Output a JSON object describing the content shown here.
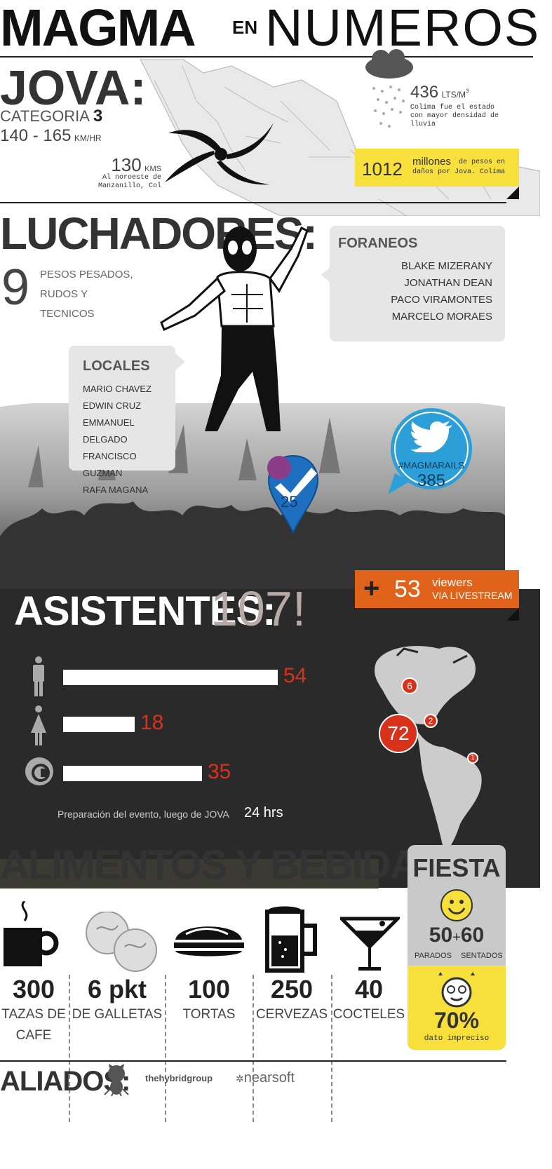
{
  "header": {
    "magma": "MAGMA",
    "en": "EN",
    "numeros": "NUMEROS"
  },
  "jova": {
    "title": "JOVA:",
    "category_label": "CATEGORIA",
    "category_value": "3",
    "speed_range": "140 - 165",
    "speed_unit": "KM/HR",
    "distance_value": "130",
    "distance_unit": "KMS",
    "distance_line1": "Al noroeste de",
    "distance_line2": "Manzanillo, Col",
    "rain_value": "436",
    "rain_unit": "LTS/M",
    "rain_unit_sup": "3",
    "rain_line1": "Colima fue el estado",
    "rain_line2": "con mayor densidad de",
    "rain_line3": "lluvia",
    "damage_value": "1012",
    "damage_word": "millones",
    "damage_line1": "de pesos en",
    "damage_line2": "daños por Jova. Colima"
  },
  "luchadores": {
    "title": "LUCHADORES:",
    "count": "9",
    "desc_line1": "PESOS PESADOS,",
    "desc_line2": "RUDOS Y",
    "desc_line3": "TECNICOS",
    "foraneos_title": "FORANEOS",
    "foraneos": [
      "BLAKE MIZERANY",
      "JONATHAN DEAN",
      "PACO VIRAMONTES",
      "MARCELO MORAES"
    ],
    "locales_title": "LOCALES",
    "locales": [
      "MARIO CHAVEZ",
      "EDWIN CRUZ",
      "EMMANUEL DELGADO",
      "FRANCISCO GUZMAN",
      "RAFA MAGANA"
    ]
  },
  "social": {
    "checkins": "25",
    "hashtag": "#MAGMARAILS",
    "tweets": "385"
  },
  "livestream": {
    "plus": "+",
    "count": "53",
    "line1": "viewers",
    "line2": "VIA LIVESTREAM"
  },
  "asistentes": {
    "label": "ASISTENTES:",
    "total": "107!",
    "bars": [
      {
        "icon": "man-icon",
        "value": 54,
        "label": "54"
      },
      {
        "icon": "woman-icon",
        "value": 18,
        "label": "18"
      },
      {
        "icon": "logo-c-icon",
        "value": 35,
        "label": "35"
      }
    ],
    "map_markers": [
      {
        "label": "6"
      },
      {
        "label": "72"
      },
      {
        "label": "2"
      },
      {
        "label": "1"
      }
    ],
    "prep_text": "Preparación del evento, luego de JOVA",
    "prep_value": "24 hrs"
  },
  "alimentos": {
    "title": "ALIMENTOS Y BEBIDAS:",
    "items": [
      {
        "value": "300",
        "label1": "TAZAS DE",
        "label2": "CAFE"
      },
      {
        "value": "6 pkt",
        "label1": "DE GALLETAS",
        "label2": ""
      },
      {
        "value": "100",
        "label1": "TORTAS",
        "label2": ""
      },
      {
        "value": "250",
        "label1": "CERVEZAS",
        "label2": ""
      },
      {
        "value": "40",
        "label1": "COCTELES",
        "label2": ""
      }
    ]
  },
  "fiesta": {
    "title": "FIESTA",
    "parados": "50",
    "plus": "+",
    "sentados": "60",
    "parados_label": "PARADOS",
    "sentados_label": "SENTADOS",
    "percent": "70%",
    "percent_note": "dato impreciso"
  },
  "aliados": {
    "title": "ALIADOS:",
    "partner1": "thehybridgroup",
    "partner2": "nearsoft"
  },
  "colors": {
    "yellow": "#f7e03c",
    "orange": "#e0621b",
    "red": "#d8321c",
    "dark": "#2b2a2b",
    "blue": "#2c9fd9"
  }
}
